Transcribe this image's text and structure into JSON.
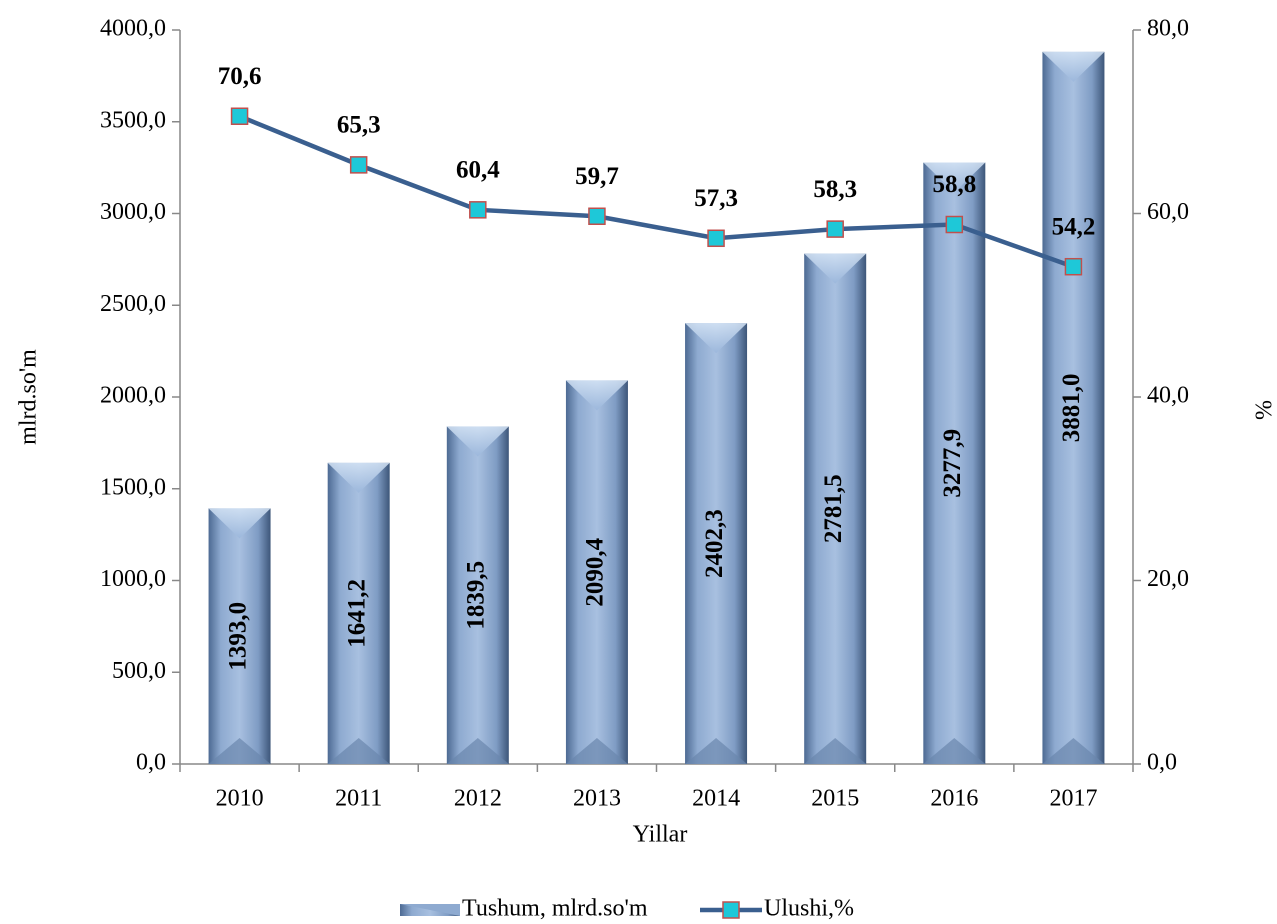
{
  "chart_data": {
    "type": "bar",
    "x_label": "Yillar",
    "y_label": "mlrd.so'm",
    "y2_label": "%",
    "categories": [
      "2010",
      "2011",
      "2012",
      "2013",
      "2014",
      "2015",
      "2016",
      "2017"
    ],
    "series": [
      {
        "name": "Tushum, mlrd.so'm",
        "type": "bar",
        "color": "#7f9cc4",
        "values": [
          1393.0,
          1641.2,
          1839.5,
          2090.4,
          2402.3,
          2781.5,
          3277.9,
          3881.0
        ],
        "value_labels": [
          "1393,0",
          "1641,2",
          "1839,5",
          "2090,4",
          "2402,3",
          "2781,5",
          "3277,9",
          "3881,0"
        ]
      },
      {
        "name": "Ulushi,%",
        "type": "line",
        "axis": "y2",
        "color": "#3a5f8f",
        "marker_color": "#1ec8d8",
        "values": [
          70.6,
          65.3,
          60.4,
          59.7,
          57.3,
          58.3,
          58.8,
          54.2
        ],
        "value_labels": [
          "70,6",
          "65,3",
          "60,4",
          "59,7",
          "57,3",
          "58,3",
          "58,8",
          "54,2"
        ]
      }
    ],
    "ylim": [
      0,
      4000
    ],
    "yticks": [
      {
        "value": 0,
        "label": "0,0"
      },
      {
        "value": 500,
        "label": "500,0"
      },
      {
        "value": 1000,
        "label": "1000,0"
      },
      {
        "value": 1500,
        "label": "1500,0"
      },
      {
        "value": 2000,
        "label": "2000,0"
      },
      {
        "value": 2500,
        "label": "2500,0"
      },
      {
        "value": 3000,
        "label": "3000,0"
      },
      {
        "value": 3500,
        "label": "3500,0"
      },
      {
        "value": 4000,
        "label": "4000,0"
      }
    ],
    "y2lim": [
      0,
      80
    ],
    "y2ticks": [
      {
        "value": 0,
        "label": "0,0"
      },
      {
        "value": 20,
        "label": "20,0"
      },
      {
        "value": 40,
        "label": "40,0"
      },
      {
        "value": 60,
        "label": "60,0"
      },
      {
        "value": 80,
        "label": "80,0"
      }
    ],
    "legend": "bottom"
  }
}
